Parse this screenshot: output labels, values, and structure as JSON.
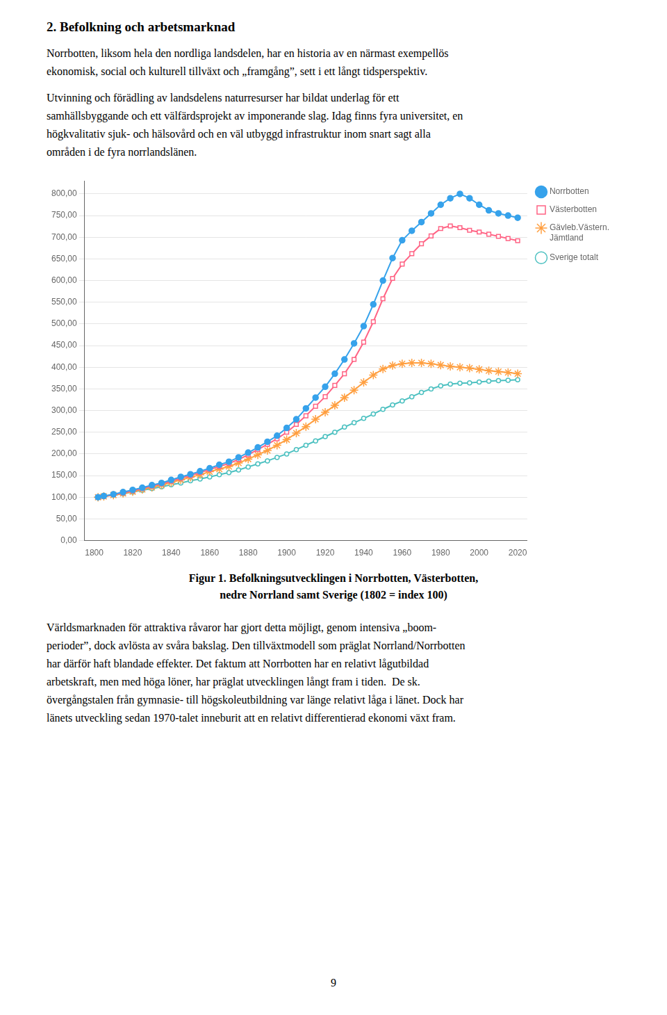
{
  "heading": "2. Befolkning och arbetsmarknad",
  "paragraphs_before": [
    [
      "Norrbotten, liksom hela den nordliga landsdelen, har en historia av en närmast exempellös",
      "ekonomisk, social och kulturell tillväxt och „framgång”, sett i ett långt tidsperspektiv."
    ],
    [
      "Utvinning och förädling av landsdelens naturresurser har bildat underlag för ett",
      "samhällsbyggande och ett välfärdsprojekt av imponerande slag. Idag finns fyra universitet, en",
      "högkvalitativ sjuk- och hälsovård och en väl utbyggd infrastruktur inom snart sagt alla",
      "områden i de fyra norrlandslänen."
    ]
  ],
  "chart_data": {
    "type": "line",
    "x": [
      1802,
      1805,
      1810,
      1815,
      1820,
      1825,
      1830,
      1835,
      1840,
      1845,
      1850,
      1855,
      1860,
      1865,
      1870,
      1875,
      1880,
      1885,
      1890,
      1895,
      1900,
      1905,
      1910,
      1915,
      1920,
      1925,
      1930,
      1935,
      1940,
      1945,
      1950,
      1955,
      1960,
      1965,
      1970,
      1975,
      1980,
      1985,
      1990,
      1995,
      2000,
      2005,
      2010,
      2015,
      2020
    ],
    "series": [
      {
        "name": "Norrbotten",
        "marker": "circle",
        "values": [
          100,
          103,
          107,
          112,
          117,
          122,
          128,
          133,
          140,
          147,
          153,
          160,
          167,
          175,
          182,
          192,
          203,
          215,
          228,
          242,
          260,
          280,
          305,
          330,
          355,
          385,
          418,
          455,
          495,
          545,
          600,
          652,
          693,
          715,
          735,
          755,
          775,
          790,
          800,
          790,
          775,
          762,
          755,
          750,
          745
        ]
      },
      {
        "name": "Västerbotten",
        "marker": "square",
        "values": [
          100,
          102,
          106,
          110,
          115,
          120,
          126,
          131,
          137,
          144,
          150,
          157,
          164,
          171,
          178,
          187,
          198,
          210,
          222,
          235,
          250,
          268,
          288,
          310,
          332,
          358,
          385,
          418,
          458,
          505,
          558,
          605,
          638,
          662,
          685,
          703,
          720,
          726,
          722,
          716,
          712,
          707,
          702,
          697,
          692
        ]
      },
      {
        "name": "Gävleb.Västern.\nJämtland",
        "marker": "star",
        "values": [
          100,
          102,
          105,
          109,
          113,
          118,
          123,
          128,
          134,
          140,
          146,
          152,
          159,
          165,
          171,
          179,
          188,
          198,
          208,
          220,
          233,
          248,
          263,
          280,
          296,
          312,
          330,
          347,
          365,
          382,
          396,
          404,
          408,
          410,
          410,
          408,
          405,
          402,
          400,
          398,
          395,
          392,
          390,
          388,
          385
        ]
      },
      {
        "name": "Sverige totalt",
        "marker": "small_circle",
        "values": [
          100,
          102,
          105,
          108,
          112,
          116,
          120,
          124,
          129,
          133,
          138,
          142,
          147,
          152,
          157,
          163,
          170,
          177,
          184,
          192,
          200,
          210,
          220,
          230,
          240,
          250,
          262,
          272,
          282,
          292,
          303,
          313,
          322,
          332,
          342,
          350,
          357,
          361,
          363,
          364,
          366,
          368,
          369,
          370,
          371
        ]
      }
    ],
    "xlim": [
      1795,
      2025
    ],
    "xticks": [
      1800,
      1820,
      1840,
      1860,
      1880,
      1900,
      1920,
      1940,
      1960,
      1980,
      2000,
      2020
    ],
    "ylim": [
      0,
      830
    ],
    "yticks": [
      {
        "value": 0,
        "label": "0,00"
      },
      {
        "value": 50,
        "label": "50,00"
      },
      {
        "value": 100,
        "label": "100,00"
      },
      {
        "value": 150,
        "label": "150,00"
      },
      {
        "value": 200,
        "label": "200,00"
      },
      {
        "value": 250,
        "label": "250,00"
      },
      {
        "value": 300,
        "label": "300,00"
      },
      {
        "value": 350,
        "label": "350,00"
      },
      {
        "value": 400,
        "label": "400,00"
      },
      {
        "value": 450,
        "label": "450,00"
      },
      {
        "value": 500,
        "label": "500,00"
      },
      {
        "value": 550,
        "label": "550,00"
      },
      {
        "value": 600,
        "label": "600,00"
      },
      {
        "value": 650,
        "label": "650,00"
      },
      {
        "value": 700,
        "label": "700,00"
      },
      {
        "value": 750,
        "label": "750,00"
      },
      {
        "value": 800,
        "label": "800,00"
      }
    ],
    "grid": "y",
    "legend": "right"
  },
  "caption": [
    "Figur 1. Befolkningsutvecklingen i Norrbotten, Västerbotten,",
    "nedre Norrland samt Sverige (1802 = index 100)"
  ],
  "paragraphs_after": [
    [
      "Världsmarknaden för attraktiva råvaror har gjort detta möjligt, genom intensiva „boom-",
      "perioder”, dock avlösta av svåra bakslag. Den tillväxtmodell som präglat Norrland/Norrbotten",
      "har därför haft blandade effekter. Det faktum att Norrbotten har en relativt lågutbildad",
      "arbetskraft, men med höga löner, har präglat utvecklingen långt fram i tiden.  De sk.",
      "övergångstalen från gymnasie- till högskoleutbildning var länge relativt låga i länet. Dock har",
      "länets utveckling sedan 1970-talet inneburit att en relativt differentierad ekonomi växt fram."
    ]
  ],
  "page_number": "9"
}
